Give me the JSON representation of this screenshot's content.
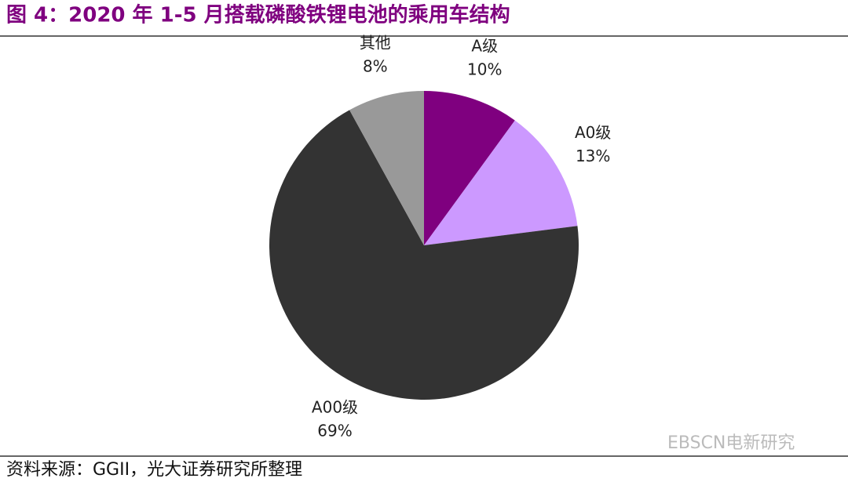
{
  "chart_data": {
    "type": "pie",
    "title": "图 4：2020 年 1-5 月搭载磷酸铁锂电池的乘用车结构",
    "categories": [
      "A级",
      "A0级",
      "A00级",
      "其他"
    ],
    "values": [
      10,
      13,
      69,
      8
    ],
    "value_labels": [
      "10%",
      "13%",
      "69%",
      "8%"
    ],
    "colors": [
      "#7f007f",
      "#cc99ff",
      "#333333",
      "#999999"
    ],
    "source": "资料来源：GGII，光大证券研究所整理",
    "watermark": "EBSCN电新研究"
  }
}
